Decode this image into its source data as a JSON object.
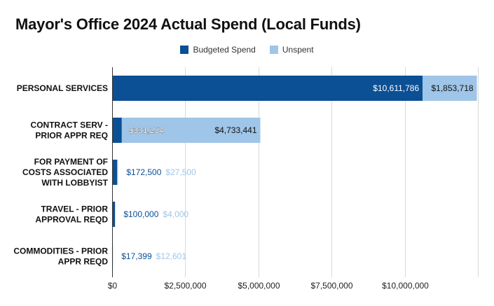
{
  "chart_data": {
    "type": "bar",
    "orientation": "horizontal",
    "stacked": true,
    "title": "Mayor's Office 2024 Actual Spend (Local Funds)",
    "legend_position": "top-center",
    "categories": [
      "PERSONAL SERVICES",
      "CONTRACT SERV - PRIOR APPR REQ",
      "FOR PAYMENT OF COSTS ASSOCIATED WITH LOBBYIST",
      "TRAVEL - PRIOR APPROVAL REQD",
      "COMMODITIES - PRIOR APPR REQD"
    ],
    "category_lines": [
      [
        "PERSONAL SERVICES"
      ],
      [
        "CONTRACT SERV -",
        "PRIOR APPR REQ"
      ],
      [
        "FOR PAYMENT OF",
        "COSTS ASSOCIATED",
        "WITH LOBBYIST"
      ],
      [
        "TRAVEL - PRIOR",
        "APPROVAL REQD"
      ],
      [
        "COMMODITIES - PRIOR",
        "APPR REQD"
      ]
    ],
    "series": [
      {
        "name": "Budgeted Spend",
        "color": "#0b4f94",
        "values": [
          10611786,
          331254,
          172500,
          100000,
          17399
        ],
        "labels": [
          "$10,611,786",
          "$331,254",
          "$172,500",
          "$100,000",
          "$17,399"
        ]
      },
      {
        "name": "Unspent",
        "color": "#9fc5e8",
        "values": [
          1853718,
          4733441,
          27500,
          4000,
          12601
        ],
        "labels": [
          "$1,853,718",
          "$4,733,441",
          "$27,500",
          "$4,000",
          "$12,601"
        ]
      }
    ],
    "xlim": [
      0,
      12500000
    ],
    "x_ticks": [
      0,
      2500000,
      5000000,
      7500000,
      10000000
    ],
    "x_tick_labels": [
      "$0",
      "$2,500,000",
      "$5,000,000",
      "$7,500,000",
      "$10,000,000"
    ],
    "grid": true
  }
}
